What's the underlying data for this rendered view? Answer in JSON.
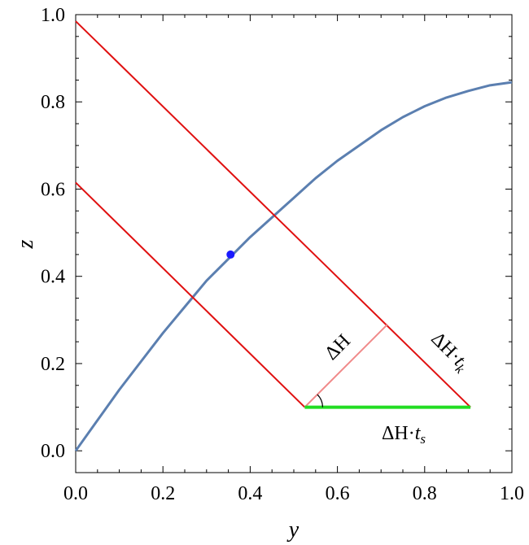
{
  "chart_data": {
    "type": "line",
    "xlabel": "y",
    "ylabel": "z",
    "xlim": [
      0,
      1
    ],
    "ylim": [
      -0.05,
      1.0
    ],
    "x_ticks": [
      "0.0",
      "0.2",
      "0.4",
      "0.6",
      "0.8",
      "1.0"
    ],
    "y_ticks": [
      "0.0",
      "0.2",
      "0.4",
      "0.6",
      "0.8",
      "1.0"
    ],
    "grid": false,
    "curve": {
      "color": "#5b7fb0",
      "x": [
        0,
        0.05,
        0.1,
        0.15,
        0.2,
        0.25,
        0.3,
        0.35,
        0.4,
        0.45,
        0.5,
        0.55,
        0.6,
        0.65,
        0.7,
        0.75,
        0.8,
        0.85,
        0.9,
        0.95,
        1.0
      ],
      "y": [
        0.0,
        0.07,
        0.14,
        0.205,
        0.27,
        0.33,
        0.39,
        0.44,
        0.49,
        0.535,
        0.58,
        0.625,
        0.665,
        0.7,
        0.735,
        0.765,
        0.79,
        0.81,
        0.825,
        0.838,
        0.845
      ]
    },
    "point": {
      "x": 0.355,
      "y": 0.45,
      "color": "#1a1aff"
    },
    "lines": [
      {
        "color": "#e01010",
        "x": [
          0,
          0.905
        ],
        "y": [
          0.985,
          0.1
        ]
      },
      {
        "color": "#e01010",
        "x": [
          0,
          0.525
        ],
        "y": [
          0.615,
          0.1
        ]
      },
      {
        "color": "#f08a8a",
        "x": [
          0.525,
          0.715
        ],
        "y": [
          0.1,
          0.29
        ]
      },
      {
        "color": "#22dd22",
        "x": [
          0.525,
          0.905
        ],
        "y": [
          0.1,
          0.1
        ]
      }
    ],
    "annotations": {
      "dh": "ΔH",
      "dh_tk_main": "ΔH·",
      "dh_tk_var": "t",
      "dh_tk_sub": "k",
      "dh_ts_main": "ΔH·",
      "dh_ts_var": "t",
      "dh_ts_sub": "s"
    }
  }
}
